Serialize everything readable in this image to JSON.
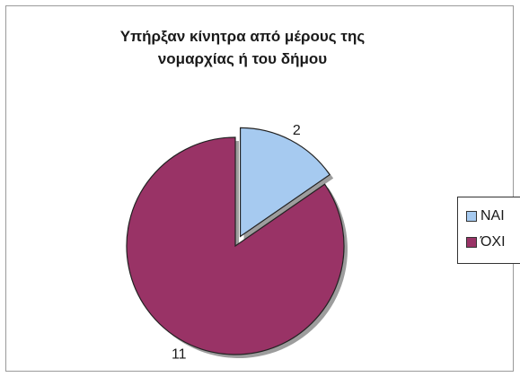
{
  "chart_data": {
    "type": "pie",
    "title": [
      "Υπήρξαν κίνητρα από μέρους της",
      "νομαρχίας ή του δήμου"
    ],
    "slices": [
      {
        "label": "ΝΑΙ",
        "value": 2,
        "color": "#a6caf0",
        "exploded": true
      },
      {
        "label": "ΌΧΙ",
        "value": 11,
        "color": "#993366",
        "exploded": false
      }
    ],
    "data_labels": [
      "2",
      "11"
    ],
    "legend": {
      "position": "right",
      "entries": [
        "ΝΑΙ",
        "ΌΧΙ"
      ]
    },
    "start_angle": "12 o'clock",
    "direction": "clockwise"
  }
}
